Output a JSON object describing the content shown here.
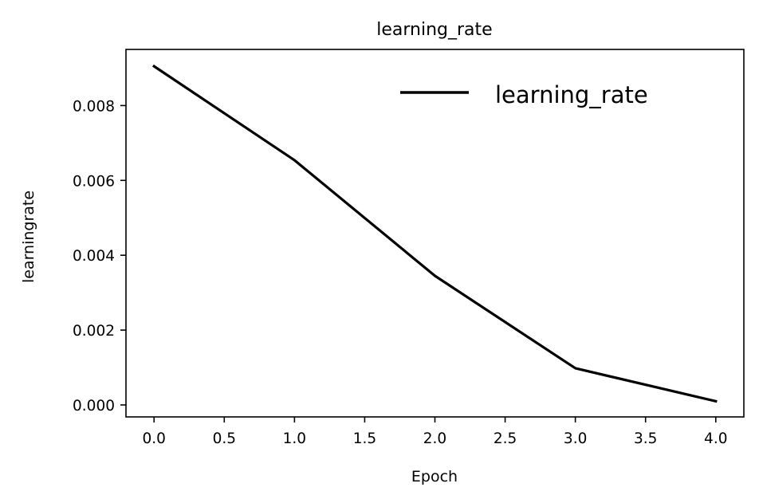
{
  "chart_data": {
    "type": "line",
    "title": "learning_rate",
    "xlabel": "Epoch",
    "ylabel": "learningrate",
    "x": [
      0,
      1,
      2,
      3,
      4
    ],
    "series": [
      {
        "name": "learning_rate",
        "color": "#000000",
        "values": [
          0.00905,
          0.00654,
          0.00345,
          0.00098,
          0.0001
        ]
      }
    ],
    "xlim": [
      -0.2,
      4.2
    ],
    "ylim": [
      -0.00032,
      0.0095
    ],
    "xticks": [
      0.0,
      0.5,
      1.0,
      1.5,
      2.0,
      2.5,
      3.0,
      3.5,
      4.0
    ],
    "xtick_labels": [
      "0.0",
      "0.5",
      "1.0",
      "1.5",
      "2.0",
      "2.5",
      "3.0",
      "3.5",
      "4.0"
    ],
    "yticks": [
      0.0,
      0.002,
      0.004,
      0.006,
      0.008
    ],
    "ytick_labels": [
      "0.000",
      "0.002",
      "0.004",
      "0.006",
      "0.008"
    ],
    "grid": false,
    "legend_position": "top-right"
  }
}
